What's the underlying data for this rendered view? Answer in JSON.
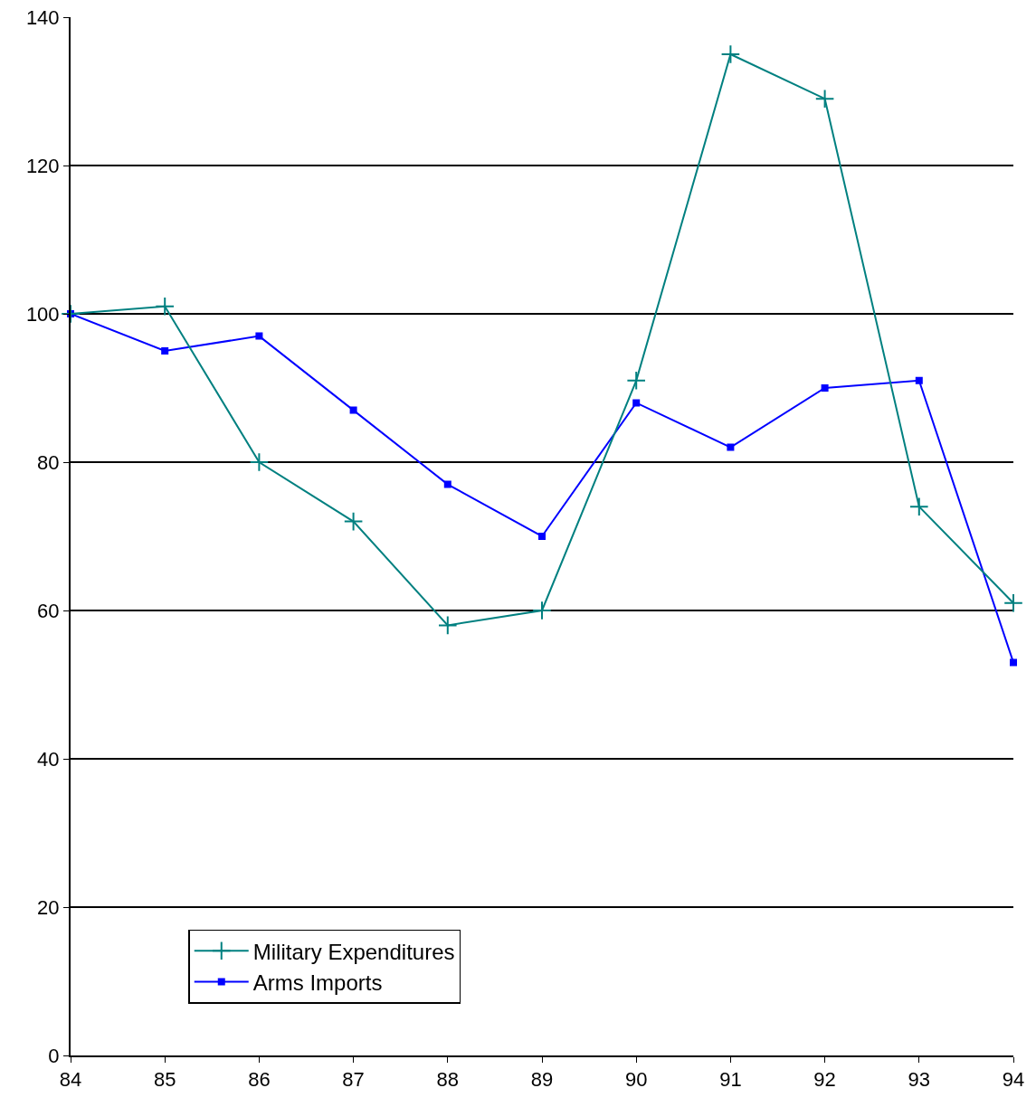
{
  "chart_data": {
    "type": "line",
    "x": [
      84,
      85,
      86,
      87,
      88,
      89,
      90,
      91,
      92,
      93,
      94
    ],
    "series": [
      {
        "name": "Military Expenditures",
        "color": "#008080",
        "marker": "cross",
        "values": [
          100,
          101,
          80,
          72,
          58,
          60,
          91,
          135,
          129,
          74,
          61
        ]
      },
      {
        "name": "Arms Imports",
        "color": "#0000ff",
        "marker": "square",
        "values": [
          100,
          95,
          97,
          87,
          77,
          70,
          88,
          82,
          90,
          91,
          53
        ]
      }
    ],
    "xlim": [
      84,
      94
    ],
    "xticks": [
      84,
      85,
      86,
      87,
      88,
      89,
      90,
      91,
      92,
      93,
      94
    ],
    "ylim": [
      0,
      140
    ],
    "yticks": [
      0,
      20,
      40,
      60,
      80,
      100,
      120,
      140
    ],
    "grid": "y",
    "legend": "bottom left",
    "line_style": "solid"
  }
}
